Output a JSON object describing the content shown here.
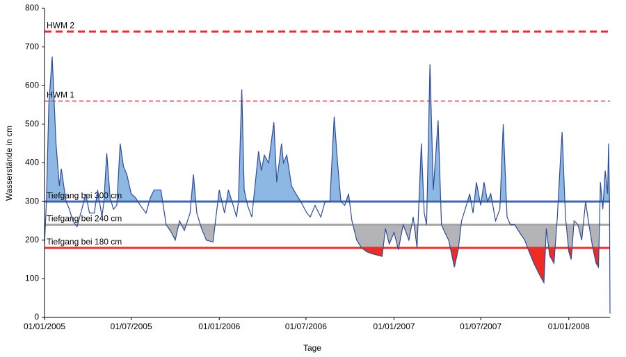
{
  "chart_data": {
    "type": "line",
    "y_label": "Wasserstände in cm",
    "x_label": "Tage",
    "color": "#2f4b9a",
    "ylim": [
      0,
      800
    ],
    "yticks": [
      0,
      100,
      200,
      300,
      400,
      500,
      600,
      700,
      800
    ],
    "xlim": [
      "01/01/2005",
      "27/03/2008"
    ],
    "xticks": [
      "01/01/2005",
      "01/07/2005",
      "01/01/2006",
      "01/07/2006",
      "01/01/2007",
      "01/07/2007",
      "01/01/2008"
    ],
    "reference_lines": [
      {
        "value": 740,
        "label": "HWM 2",
        "color": "#e8312f",
        "style": "dashed-bold"
      },
      {
        "value": 560,
        "label": "HWM 1",
        "color": "#e8312f",
        "style": "dashed"
      },
      {
        "value": 300,
        "label": "Tiefgang bei 300 cm",
        "color": "#4166b0",
        "style": "solid",
        "fill": "above",
        "fill_color": "#8db8e4"
      },
      {
        "value": 240,
        "label": "Tiefgang bei 240 cm",
        "color": "#a6a6a6",
        "style": "solid",
        "fill": "below",
        "fill_color": "#b4b4b8"
      },
      {
        "value": 180,
        "label": "Tiefgang bei 180 cm",
        "color": "#e8312f",
        "style": "solid",
        "fill": "below",
        "fill_color": "#ee2b24"
      }
    ],
    "x": [
      "01/01/2005",
      "05/01/2005",
      "10/01/2005",
      "17/01/2005",
      "25/01/2005",
      "01/02/2005",
      "05/02/2005",
      "15/02/2005",
      "22/02/2005",
      "01/03/2005",
      "10/03/2005",
      "20/03/2005",
      "28/03/2005",
      "05/04/2005",
      "15/04/2005",
      "22/04/2005",
      "01/05/2005",
      "05/05/2005",
      "11/05/2005",
      "18/05/2005",
      "25/05/2005",
      "01/06/2005",
      "08/06/2005",
      "15/06/2005",
      "22/06/2005",
      "01/07/2005",
      "10/07/2005",
      "20/07/2005",
      "01/08/2005",
      "10/08/2005",
      "18/08/2005",
      "01/09/2005",
      "12/09/2005",
      "23/09/2005",
      "01/10/2005",
      "10/10/2005",
      "20/10/2005",
      "01/11/2005",
      "08/11/2005",
      "15/11/2005",
      "25/11/2005",
      "05/12/2005",
      "19/12/2005",
      "25/12/2005",
      "01/01/2006",
      "12/01/2006",
      "20/01/2006",
      "30/01/2006",
      "06/02/2006",
      "10/02/2006",
      "17/02/2006",
      "22/02/2006",
      "01/03/2006",
      "10/03/2006",
      "24/03/2006",
      "30/03/2006",
      "05/04/2006",
      "14/04/2006",
      "25/04/2006",
      "01/05/2006",
      "11/05/2006",
      "15/05/2006",
      "22/05/2006",
      "01/06/2006",
      "10/06/2006",
      "20/06/2006",
      "03/07/2006",
      "10/07/2006",
      "20/07/2006",
      "01/08/2006",
      "10/08/2006",
      "20/08/2006",
      "29/08/2006",
      "05/09/2006",
      "12/09/2006",
      "20/09/2006",
      "28/09/2006",
      "05/10/2006",
      "15/10/2006",
      "25/10/2006",
      "05/11/2006",
      "15/11/2006",
      "01/12/2006",
      "07/12/2006",
      "14/12/2006",
      "22/12/2006",
      "01/01/2007",
      "10/01/2007",
      "20/01/2007",
      "01/02/2007",
      "10/02/2007",
      "18/02/2007",
      "27/02/2007",
      "05/03/2007",
      "10/03/2007",
      "17/03/2007",
      "24/03/2007",
      "03/04/2007",
      "10/04/2007",
      "17/04/2007",
      "25/04/2007",
      "07/05/2007",
      "15/05/2007",
      "22/05/2007",
      "01/06/2007",
      "08/06/2007",
      "15/06/2007",
      "22/06/2007",
      "01/07/2007",
      "08/07/2007",
      "15/07/2007",
      "22/07/2007",
      "01/08/2007",
      "10/08/2007",
      "17/08/2007",
      "25/08/2007",
      "01/09/2007",
      "10/09/2007",
      "20/09/2007",
      "01/10/2007",
      "10/10/2007",
      "20/10/2007",
      "01/11/2007",
      "10/11/2007",
      "15/11/2007",
      "22/11/2007",
      "01/12/2007",
      "08/12/2007",
      "15/12/2007",
      "18/12/2007",
      "25/12/2007",
      "01/01/2008",
      "06/01/2008",
      "12/01/2008",
      "20/01/2008",
      "28/01/2008",
      "05/02/2008",
      "12/02/2008",
      "20/02/2008",
      "27/02/2008",
      "03/03/2008",
      "07/03/2008",
      "12/03/2008",
      "17/03/2008",
      "22/03/2008",
      "24/03/2008",
      "26/03/2008",
      "27/03/2008"
    ],
    "values": [
      190,
      300,
      550,
      675,
      450,
      340,
      385,
      300,
      280,
      250,
      235,
      280,
      320,
      270,
      270,
      330,
      260,
      300,
      425,
      310,
      280,
      290,
      450,
      390,
      370,
      320,
      310,
      290,
      270,
      310,
      330,
      330,
      240,
      220,
      200,
      250,
      225,
      270,
      370,
      270,
      230,
      200,
      195,
      260,
      330,
      270,
      330,
      290,
      260,
      300,
      590,
      330,
      290,
      260,
      430,
      380,
      420,
      400,
      505,
      350,
      450,
      400,
      420,
      340,
      320,
      300,
      270,
      260,
      290,
      260,
      300,
      300,
      520,
      400,
      300,
      290,
      320,
      250,
      200,
      180,
      170,
      165,
      160,
      158,
      230,
      190,
      220,
      175,
      240,
      200,
      260,
      180,
      450,
      270,
      240,
      655,
      330,
      510,
      240,
      220,
      200,
      130,
      175,
      250,
      290,
      320,
      270,
      350,
      290,
      350,
      300,
      320,
      250,
      280,
      500,
      260,
      240,
      240,
      220,
      200,
      170,
      140,
      110,
      90,
      230,
      160,
      140,
      260,
      420,
      480,
      260,
      170,
      150,
      250,
      240,
      200,
      300,
      240,
      180,
      140,
      130,
      350,
      280,
      380,
      320,
      450,
      300,
      10
    ]
  }
}
